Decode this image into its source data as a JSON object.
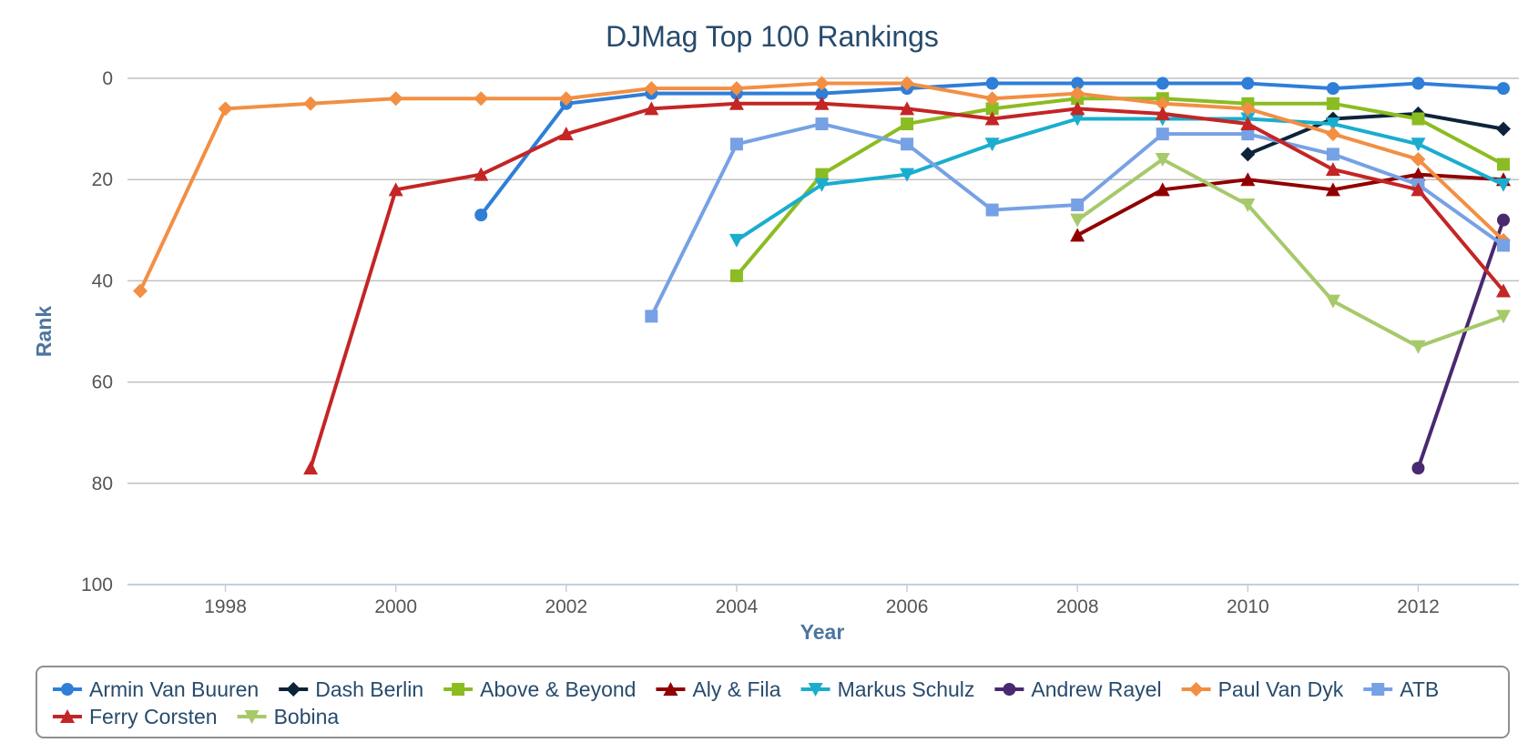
{
  "chart_data": {
    "type": "line",
    "title": "DJMag Top 100 Rankings",
    "xlabel": "Year",
    "ylabel": "Rank",
    "xlim": [
      1997,
      2013
    ],
    "ylim": [
      100,
      0
    ],
    "y_reversed": true,
    "x_ticks": [
      1998,
      2000,
      2002,
      2004,
      2006,
      2008,
      2010,
      2012
    ],
    "y_ticks": [
      0,
      20,
      40,
      60,
      80,
      100
    ],
    "grid": "horizontal",
    "legend_position": "bottom",
    "series": [
      {
        "name": "Armin Van Buuren",
        "color": "#2f7ed8",
        "marker": "circle",
        "points": [
          [
            2001,
            27
          ],
          [
            2002,
            5
          ],
          [
            2003,
            3
          ],
          [
            2004,
            3
          ],
          [
            2005,
            3
          ],
          [
            2006,
            2
          ],
          [
            2007,
            1
          ],
          [
            2008,
            1
          ],
          [
            2009,
            1
          ],
          [
            2010,
            1
          ],
          [
            2011,
            2
          ],
          [
            2012,
            1
          ],
          [
            2013,
            2
          ]
        ]
      },
      {
        "name": "Dash Berlin",
        "color": "#0d233a",
        "marker": "diamond",
        "points": [
          [
            2010,
            15
          ],
          [
            2011,
            8
          ],
          [
            2012,
            7
          ],
          [
            2013,
            10
          ]
        ]
      },
      {
        "name": "Above & Beyond",
        "color": "#8bbc21",
        "marker": "square",
        "points": [
          [
            2004,
            39
          ],
          [
            2005,
            19
          ],
          [
            2006,
            9
          ],
          [
            2007,
            6
          ],
          [
            2008,
            4
          ],
          [
            2009,
            4
          ],
          [
            2010,
            5
          ],
          [
            2011,
            5
          ],
          [
            2012,
            8
          ],
          [
            2013,
            17
          ]
        ]
      },
      {
        "name": "Aly & Fila",
        "color": "#910000",
        "marker": "triangle",
        "points": [
          [
            2008,
            31
          ],
          [
            2009,
            22
          ],
          [
            2010,
            20
          ],
          [
            2011,
            22
          ],
          [
            2012,
            19
          ],
          [
            2013,
            20
          ]
        ]
      },
      {
        "name": "Markus Schulz",
        "color": "#1aadce",
        "marker": "triangle-down",
        "points": [
          [
            2004,
            32
          ],
          [
            2005,
            21
          ],
          [
            2006,
            19
          ],
          [
            2007,
            13
          ],
          [
            2008,
            8
          ],
          [
            2009,
            8
          ],
          [
            2010,
            8
          ],
          [
            2011,
            9
          ],
          [
            2012,
            13
          ],
          [
            2013,
            21
          ]
        ]
      },
      {
        "name": "Andrew Rayel",
        "color": "#492970",
        "marker": "circle",
        "points": [
          [
            2012,
            77
          ],
          [
            2013,
            28
          ]
        ]
      },
      {
        "name": "Paul Van Dyk",
        "color": "#f28f43",
        "marker": "diamond",
        "points": [
          [
            1997,
            42
          ],
          [
            1998,
            6
          ],
          [
            1999,
            5
          ],
          [
            2000,
            4
          ],
          [
            2001,
            4
          ],
          [
            2002,
            4
          ],
          [
            2003,
            2
          ],
          [
            2004,
            2
          ],
          [
            2005,
            1
          ],
          [
            2006,
            1
          ],
          [
            2007,
            4
          ],
          [
            2008,
            3
          ],
          [
            2009,
            5
          ],
          [
            2010,
            6
          ],
          [
            2011,
            11
          ],
          [
            2012,
            16
          ],
          [
            2013,
            32
          ]
        ]
      },
      {
        "name": "ATB",
        "color": "#77a1e5",
        "marker": "square",
        "points": [
          [
            2003,
            47
          ],
          [
            2004,
            13
          ],
          [
            2005,
            9
          ],
          [
            2006,
            13
          ],
          [
            2007,
            26
          ],
          [
            2008,
            25
          ],
          [
            2009,
            11
          ],
          [
            2010,
            11
          ],
          [
            2011,
            15
          ],
          [
            2012,
            21
          ],
          [
            2013,
            33
          ]
        ]
      },
      {
        "name": "Ferry Corsten",
        "color": "#c42525",
        "marker": "triangle",
        "points": [
          [
            1999,
            77
          ],
          [
            2000,
            22
          ],
          [
            2001,
            19
          ],
          [
            2002,
            11
          ],
          [
            2003,
            6
          ],
          [
            2004,
            5
          ],
          [
            2005,
            5
          ],
          [
            2006,
            6
          ],
          [
            2007,
            8
          ],
          [
            2008,
            6
          ],
          [
            2009,
            7
          ],
          [
            2010,
            9
          ],
          [
            2011,
            18
          ],
          [
            2012,
            22
          ],
          [
            2013,
            42
          ]
        ]
      },
      {
        "name": "Bobina",
        "color": "#a6c96a",
        "marker": "triangle-down",
        "points": [
          [
            2008,
            28
          ],
          [
            2009,
            16
          ],
          [
            2010,
            25
          ],
          [
            2011,
            44
          ],
          [
            2012,
            53
          ],
          [
            2013,
            47
          ]
        ]
      }
    ]
  }
}
